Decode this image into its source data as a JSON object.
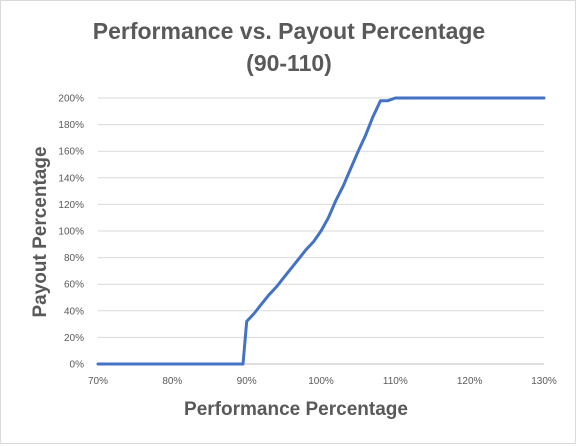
{
  "chart_data": {
    "type": "line",
    "title_lines": [
      "Performance vs. Payout Percentage",
      "(90-110)"
    ],
    "xlabel": "Performance Percentage",
    "ylabel": "Payout Percentage",
    "xlim": [
      70,
      130
    ],
    "ylim": [
      0,
      200
    ],
    "x_ticks": [
      70,
      80,
      90,
      100,
      110,
      120,
      130
    ],
    "y_ticks": [
      0,
      20,
      40,
      60,
      80,
      100,
      120,
      140,
      160,
      180,
      200
    ],
    "x_tick_labels": [
      "70%",
      "80%",
      "90%",
      "100%",
      "110%",
      "120%",
      "130%"
    ],
    "y_tick_labels": [
      "0%",
      "20%",
      "40%",
      "60%",
      "80%",
      "100%",
      "120%",
      "140%",
      "160%",
      "180%",
      "200%"
    ],
    "grid": "horizontal",
    "line_color": "#4472c4",
    "series": [
      {
        "x": [
          70,
          89,
          89.5,
          90,
          91,
          92,
          93,
          94,
          95,
          96,
          97,
          98,
          99,
          100,
          101,
          102,
          103,
          104,
          105,
          106,
          107,
          108,
          109,
          110,
          130
        ],
        "values": [
          0,
          0,
          0,
          32,
          38,
          45,
          52,
          58,
          65,
          72,
          79,
          86,
          92,
          100,
          110,
          123,
          134,
          147,
          160,
          172,
          186,
          198,
          198,
          200,
          200
        ]
      }
    ]
  }
}
